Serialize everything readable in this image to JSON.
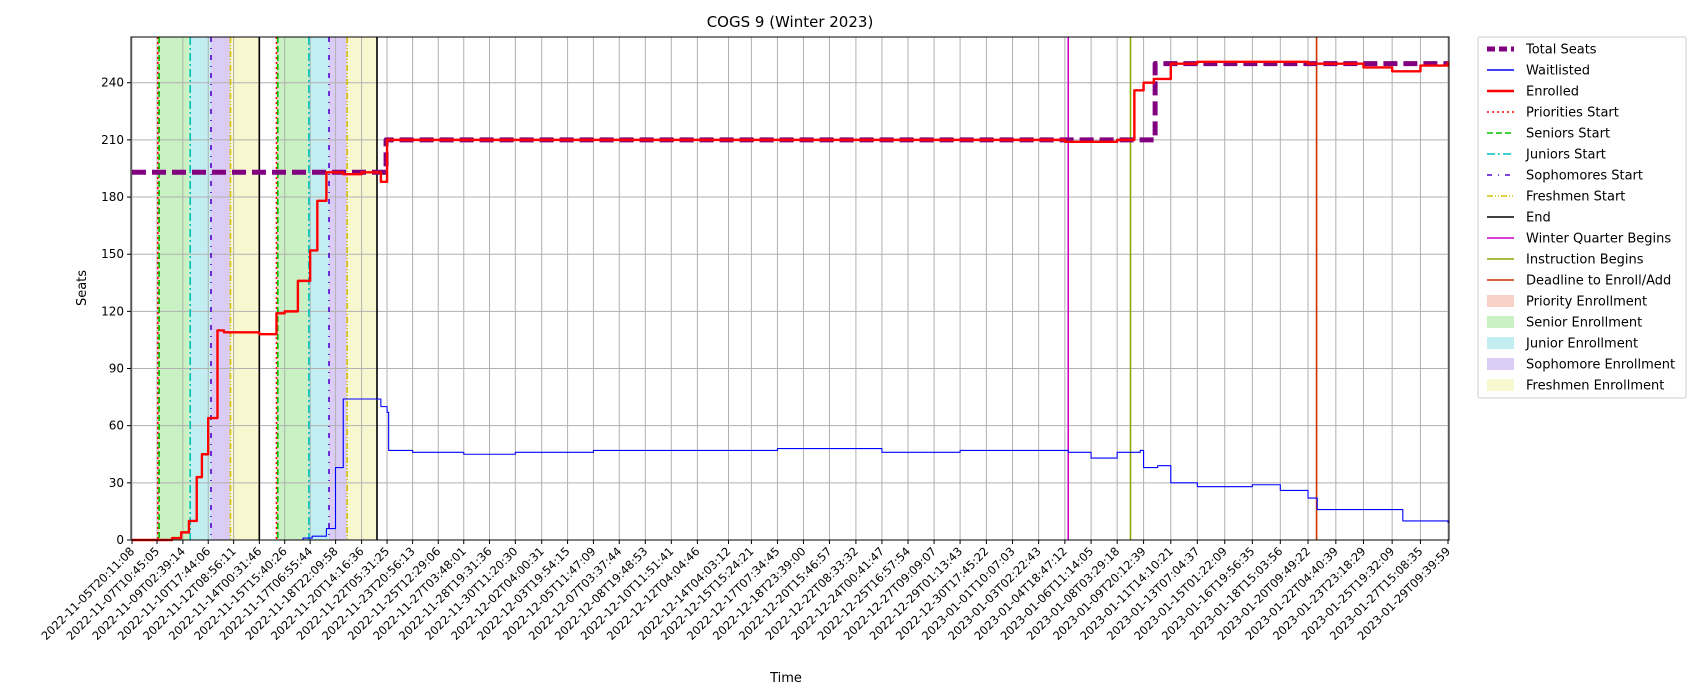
{
  "chart_data": {
    "type": "line",
    "title": "COGS 9 (Winter 2023)",
    "xlabel": "Time",
    "ylabel": "Seats",
    "ylim": [
      0,
      264
    ],
    "yticks": [
      0,
      30,
      60,
      90,
      120,
      150,
      180,
      210,
      240
    ],
    "grid": true,
    "legend_position": "outside-right",
    "x_tick_labels": [
      "2022-11-05T20:11:08",
      "2022-11-07T10:45:05",
      "2022-11-09T02:39:14",
      "2022-11-10T17:44:06",
      "2022-11-12T08:56:11",
      "2022-11-14T00:31:46",
      "2022-11-15T15:40:26",
      "2022-11-17T06:55:44",
      "2022-11-18T22:09:58",
      "2022-11-20T14:16:36",
      "2022-11-22T05:31:25",
      "2022-11-23T20:56:13",
      "2022-11-25T12:29:06",
      "2022-11-27T03:48:01",
      "2022-11-28T19:31:36",
      "2022-11-30T11:20:30",
      "2022-12-02T04:00:31",
      "2022-12-03T19:54:15",
      "2022-12-05T11:47:09",
      "2022-12-07T03:37:44",
      "2022-12-08T19:48:53",
      "2022-12-10T11:51:41",
      "2022-12-12T04:04:46",
      "2022-12-14T04:03:12",
      "2022-12-15T15:24:21",
      "2022-12-17T07:34:45",
      "2022-12-18T23:39:00",
      "2022-12-20T15:46:57",
      "2022-12-22T08:33:32",
      "2022-12-24T00:41:47",
      "2022-12-25T16:57:54",
      "2022-12-27T09:09:07",
      "2022-12-29T01:13:43",
      "2022-12-30T17:45:22",
      "2023-01-01T10:07:03",
      "2023-01-03T02:22:43",
      "2023-01-04T18:47:12",
      "2023-01-06T11:14:05",
      "2023-01-08T03:29:18",
      "2023-01-09T20:12:39",
      "2023-01-11T14:10:21",
      "2023-01-13T07:04:37",
      "2023-01-15T01:22:09",
      "2023-01-16T19:56:35",
      "2023-01-18T15:03:56",
      "2023-01-20T09:49:22",
      "2023-01-22T04:40:39",
      "2023-01-23T23:18:29",
      "2023-01-25T19:32:09",
      "2023-01-27T15:08:35",
      "2023-01-29T09:39:59"
    ],
    "series": [
      {
        "name": "Total Seats",
        "color": "#800080",
        "style": "dashed-thick",
        "x": [
          "2022-11-05T20:11:08",
          "2022-11-22T00:00:00",
          "2022-11-22T04:00:00",
          "2023-01-10T00:00:00",
          "2023-01-10T14:00:00",
          "2023-01-29T09:39:59"
        ],
        "y": [
          193,
          193,
          210,
          210,
          250,
          250
        ]
      },
      {
        "name": "Waitlisted",
        "color": "#0000ff",
        "style": "solid-thin",
        "x": [
          "2022-11-05T20:11:08",
          "2022-11-14T00:31:46",
          "2022-11-16T20:00:00",
          "2022-11-17T10:00:00",
          "2022-11-18T08:00:00",
          "2022-11-18T22:00:00",
          "2022-11-19T10:00:00",
          "2022-11-20T14:16:36",
          "2022-11-21T20:00:00",
          "2022-11-22T05:31:25",
          "2022-11-22T08:00:00",
          "2022-11-23T20:56:13",
          "2022-11-27T03:48:01",
          "2022-11-30T11:20:30",
          "2022-12-05T11:47:09",
          "2022-12-12T04:04:46",
          "2022-12-17T07:34:45",
          "2022-12-24T00:41:47",
          "2022-12-29T01:13:43",
          "2023-01-03T02:22:43",
          "2023-01-05T00:00:00",
          "2023-01-06T11:14:05",
          "2023-01-08T03:29:18",
          "2023-01-09T15:00:00",
          "2023-01-09T20:12:39",
          "2023-01-10T18:00:00",
          "2023-01-11T14:10:21",
          "2023-01-13T07:04:37",
          "2023-01-16T19:56:35",
          "2023-01-18T15:03:56",
          "2023-01-20T09:49:22",
          "2023-01-21T00:00:00",
          "2023-01-25T19:32:09",
          "2023-01-26T12:00:00",
          "2023-01-27T15:08:35",
          "2023-01-29T09:39:59"
        ],
        "y": [
          0,
          0,
          1,
          2,
          6,
          38,
          74,
          74,
          70,
          67,
          47,
          46,
          45,
          46,
          47,
          47,
          48,
          46,
          47,
          47,
          46,
          43,
          46,
          47,
          38,
          39,
          30,
          28,
          29,
          26,
          22,
          16,
          16,
          10,
          10,
          9
        ]
      },
      {
        "name": "Enrolled",
        "color": "#ff0000",
        "style": "solid-thick",
        "x": [
          "2022-11-05T20:11:08",
          "2022-11-08T10:00:00",
          "2022-11-09T00:00:00",
          "2022-11-09T12:00:00",
          "2022-11-10T00:00:00",
          "2022-11-10T08:00:00",
          "2022-11-10T17:44:06",
          "2022-11-11T08:00:00",
          "2022-11-11T18:00:00",
          "2022-11-12T08:56:11",
          "2022-11-14T00:31:46",
          "2022-11-15T03:00:00",
          "2022-11-15T15:40:26",
          "2022-11-16T12:00:00",
          "2022-11-17T06:55:44",
          "2022-11-17T18:00:00",
          "2022-11-18T08:00:00",
          "2022-11-19T10:00:00",
          "2022-11-20T14:16:36",
          "2022-11-21T12:00:00",
          "2022-11-21T20:00:00",
          "2022-11-22T05:31:25",
          "2022-11-23T20:56:13",
          "2022-11-28T19:31:36",
          "2022-12-08T19:48:53",
          "2022-12-20T15:46:57",
          "2023-01-01T10:07:03",
          "2023-01-04T18:47:12",
          "2023-01-08T03:29:18",
          "2023-01-09T06:00:00",
          "2023-01-09T20:12:39",
          "2023-01-10T12:00:00",
          "2023-01-11T14:10:21",
          "2023-01-13T07:04:37",
          "2023-01-16T19:56:35",
          "2023-01-20T09:49:22",
          "2023-01-23T23:18:29",
          "2023-01-25T19:32:09",
          "2023-01-27T15:08:35",
          "2023-01-29T09:39:59"
        ],
        "y": [
          0,
          1,
          4,
          10,
          33,
          45,
          64,
          110,
          109,
          109,
          108,
          119,
          120,
          136,
          152,
          178,
          193,
          192,
          193,
          193,
          188,
          210,
          210,
          210,
          210,
          210,
          210,
          209,
          210,
          236,
          240,
          242,
          250,
          251,
          251,
          250,
          248,
          246,
          249,
          251
        ]
      }
    ],
    "vertical_markers": [
      {
        "name": "Priorities Start",
        "color": "#ff0000",
        "style": "dotted",
        "x": [
          "2022-11-07T12:00:00",
          "2022-11-15T03:00:00"
        ]
      },
      {
        "name": "Seniors Start",
        "color": "#00c000",
        "style": "dashed",
        "x": [
          "2022-11-07T14:00:00",
          "2022-11-15T05:00:00"
        ]
      },
      {
        "name": "Juniors Start",
        "color": "#00bfbf",
        "style": "dashdot",
        "x": [
          "2022-11-09T14:00:00",
          "2022-11-17T05:00:00"
        ]
      },
      {
        "name": "Sophomores Start",
        "color": "#5500d0",
        "style": "dashdot-sparse",
        "x": [
          "2022-11-10T22:00:00",
          "2022-11-18T12:00:00"
        ]
      },
      {
        "name": "Freshmen Start",
        "color": "#d7c000",
        "style": "dashdotdot",
        "x": [
          "2022-11-12T04:00:00",
          "2022-11-19T16:00:00"
        ]
      },
      {
        "name": "End",
        "color": "#000000",
        "style": "solid",
        "x": [
          "2022-11-14T00:31:46",
          "2022-11-21T14:00:00"
        ]
      },
      {
        "name": "Winter Quarter Begins",
        "color": "#cc00cc",
        "style": "solid",
        "x": [
          "2023-01-05T00:00:00"
        ]
      },
      {
        "name": "Instruction Begins",
        "color": "#88aa00",
        "style": "solid",
        "x": [
          "2023-01-09T00:00:00"
        ]
      },
      {
        "name": "Deadline to Enroll/Add",
        "color": "#cc3300",
        "style": "solid",
        "x": [
          "2023-01-20T23:00:00"
        ]
      }
    ],
    "shaded_periods": [
      {
        "name": "Priority Enrollment",
        "color": "#f4c2b4",
        "spans": [
          [
            "2022-11-07T12:00:00",
            "2022-11-07T14:00:00"
          ],
          [
            "2022-11-15T03:00:00",
            "2022-11-15T05:00:00"
          ]
        ]
      },
      {
        "name": "Senior Enrollment",
        "color": "#b8ecb0",
        "spans": [
          [
            "2022-11-07T14:00:00",
            "2022-11-09T14:00:00"
          ],
          [
            "2022-11-15T05:00:00",
            "2022-11-17T05:00:00"
          ]
        ]
      },
      {
        "name": "Junior Enrollment",
        "color": "#aee8ee",
        "spans": [
          [
            "2022-11-09T14:00:00",
            "2022-11-10T22:00:00"
          ],
          [
            "2022-11-17T05:00:00",
            "2022-11-18T12:00:00"
          ]
        ]
      },
      {
        "name": "Sophomore Enrollment",
        "color": "#cdbbf0",
        "spans": [
          [
            "2022-11-10T22:00:00",
            "2022-11-12T04:00:00"
          ],
          [
            "2022-11-18T12:00:00",
            "2022-11-19T16:00:00"
          ]
        ]
      },
      {
        "name": "Freshmen Enrollment",
        "color": "#f6f6c0",
        "spans": [
          [
            "2022-11-12T04:00:00",
            "2022-11-14T00:31:46"
          ],
          [
            "2022-11-19T16:00:00",
            "2022-11-21T14:00:00"
          ]
        ]
      }
    ]
  }
}
